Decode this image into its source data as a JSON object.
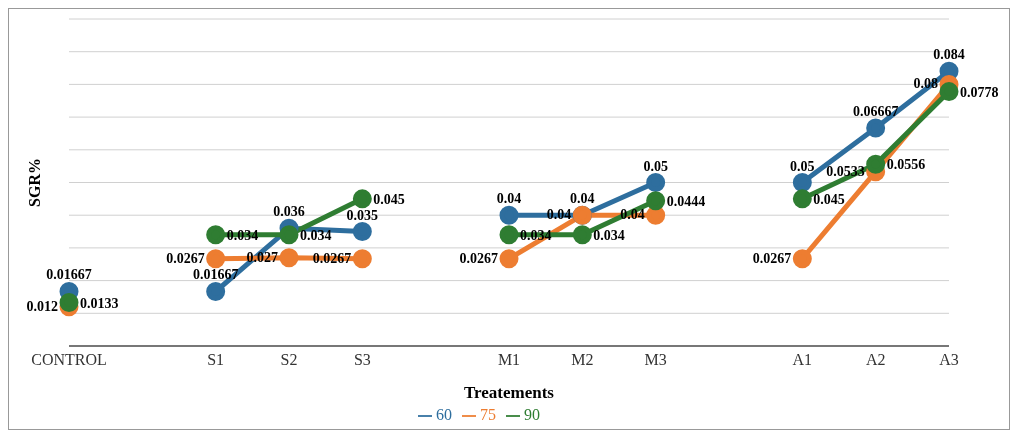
{
  "chart_data": {
    "type": "line",
    "xlabel": "Treatements",
    "ylabel": "SGR%",
    "categories": [
      "CONTROL",
      null,
      "S1",
      "S2",
      "S3",
      null,
      "M1",
      "M2",
      "M3",
      null,
      "A1",
      "A2",
      "A3"
    ],
    "series": [
      {
        "name": "60",
        "color": "#2e6e9e",
        "values": [
          0.01667,
          null,
          0.01667,
          0.036,
          0.035,
          null,
          0.04,
          0.04,
          0.05,
          null,
          0.05,
          0.06667,
          0.084
        ]
      },
      {
        "name": "75",
        "color": "#ed7d31",
        "values": [
          0.012,
          null,
          0.0267,
          0.027,
          0.0267,
          null,
          0.0267,
          0.04,
          0.04,
          null,
          0.0267,
          0.0533,
          0.08
        ]
      },
      {
        "name": "90",
        "color": "#2f7d32",
        "values": [
          0.0133,
          null,
          0.034,
          0.034,
          0.045,
          null,
          0.034,
          0.034,
          0.0444,
          null,
          0.045,
          0.0556,
          0.0778
        ]
      }
    ],
    "ylim": [
      0,
      0.1
    ],
    "yticks": [
      {
        "value": 0,
        "label": null
      },
      {
        "value": 0.01,
        "label": null
      },
      {
        "value": 0.02,
        "label": null
      },
      {
        "value": 0.03,
        "label": null
      },
      {
        "value": 0.04,
        "label": null
      },
      {
        "value": 0.05,
        "label": null
      },
      {
        "value": 0.06,
        "label": null
      },
      {
        "value": 0.07,
        "label": null
      },
      {
        "value": 0.08,
        "label": null
      },
      {
        "value": 0.09,
        "label": null
      },
      {
        "value": 0.1,
        "label": null
      }
    ],
    "tick_labels": "x",
    "grid": "y",
    "legend": "bottom",
    "marker": "circle",
    "line_style": "solid",
    "data_labels": true
  }
}
